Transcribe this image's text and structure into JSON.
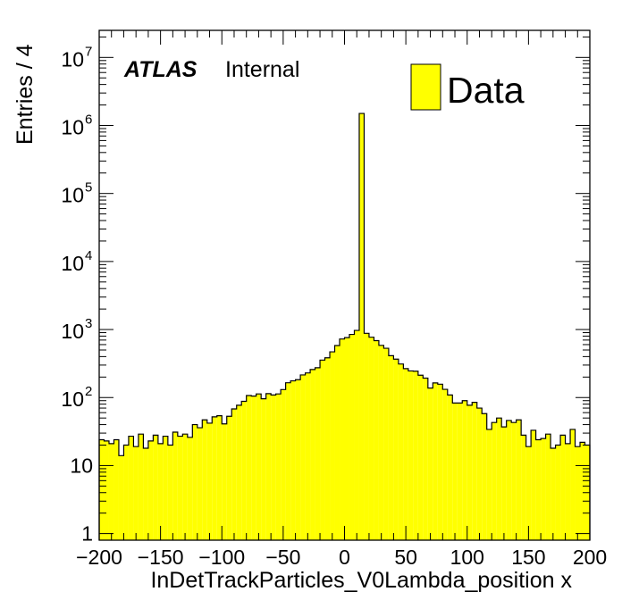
{
  "chart_data": {
    "type": "bar",
    "title": "",
    "xlabel": "InDetTrackParticles_V0Lambda_position x",
    "ylabel": "Entries / 4",
    "xlim": [
      -200,
      200
    ],
    "ylim": [
      0.8,
      25000000
    ],
    "y_scale": "log",
    "bin_width": 4,
    "x_ticks": [
      "−200",
      "−150",
      "−100",
      "−50",
      "0",
      "50",
      "100",
      "150",
      "200"
    ],
    "y_ticks": [
      {
        "base": "1",
        "exp": ""
      },
      {
        "base": "10",
        "exp": ""
      },
      {
        "base": "10",
        "exp": "2"
      },
      {
        "base": "10",
        "exp": "3"
      },
      {
        "base": "10",
        "exp": "4"
      },
      {
        "base": "10",
        "exp": "5"
      },
      {
        "base": "10",
        "exp": "6"
      },
      {
        "base": "10",
        "exp": "7"
      }
    ],
    "series": [
      {
        "name": "Data",
        "color": "#ffff00",
        "edge_color": "#000000",
        "x_bin_centers": [
          -198,
          -194,
          -190,
          -186,
          -182,
          -178,
          -174,
          -170,
          -166,
          -162,
          -158,
          -154,
          -150,
          -146,
          -142,
          -138,
          -134,
          -130,
          -126,
          -122,
          -118,
          -114,
          -110,
          -106,
          -102,
          -98,
          -94,
          -90,
          -86,
          -82,
          -78,
          -74,
          -70,
          -66,
          -62,
          -58,
          -54,
          -50,
          -46,
          -42,
          -38,
          -34,
          -30,
          -26,
          -22,
          -18,
          -14,
          -10,
          -6,
          -2,
          2,
          6,
          10,
          14,
          18,
          22,
          26,
          30,
          34,
          38,
          42,
          46,
          50,
          54,
          58,
          62,
          66,
          70,
          74,
          78,
          82,
          86,
          90,
          94,
          98,
          102,
          106,
          110,
          114,
          118,
          122,
          126,
          130,
          134,
          138,
          142,
          146,
          150,
          154,
          158,
          162,
          166,
          170,
          174,
          178,
          182,
          186,
          190,
          194,
          198
        ],
        "values": [
          24,
          23,
          21,
          24,
          14,
          20,
          27,
          19,
          29,
          18,
          23,
          28,
          21,
          27,
          20,
          31,
          27,
          29,
          26,
          40,
          36,
          47,
          42,
          52,
          54,
          41,
          53,
          68,
          77,
          88,
          107,
          105,
          113,
          96,
          114,
          109,
          113,
          131,
          165,
          176,
          183,
          215,
          230,
          258,
          274,
          355,
          384,
          470,
          581,
          725,
          760,
          847,
          970,
          1500000,
          880,
          770,
          686,
          585,
          530,
          412,
          367,
          311,
          266,
          246,
          244,
          213,
          193,
          138,
          164,
          157,
          132,
          109,
          83,
          83,
          90,
          77,
          85,
          70,
          58,
          34,
          43,
          50,
          37,
          46,
          43,
          47,
          28,
          19,
          33,
          24,
          25,
          29,
          18,
          20,
          28,
          21,
          34,
          19,
          22,
          20
        ]
      }
    ],
    "legend": {
      "position": "top-right",
      "entries": [
        "Data"
      ]
    },
    "annotations": {
      "atlas": "ATLAS",
      "label": "Internal"
    }
  }
}
